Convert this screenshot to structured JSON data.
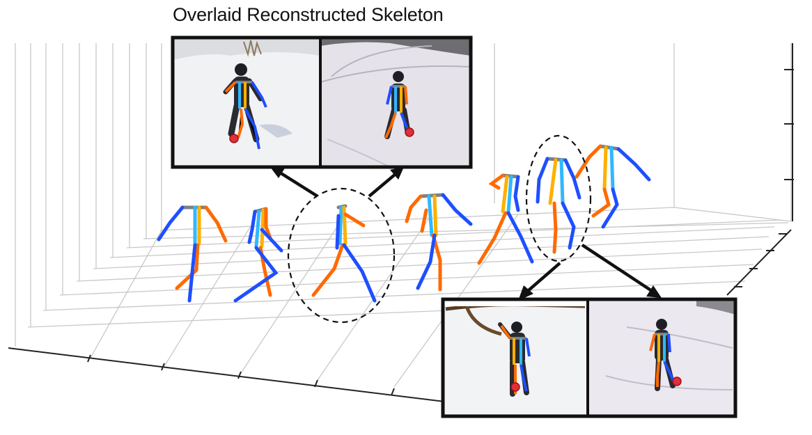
{
  "caption": "Overlaid Reconstructed Skeleton",
  "colors": {
    "background": "#ffffff",
    "grid": "#c8c8c8",
    "axis": "#222222",
    "frame": "#111111",
    "snow": "#eef0f4",
    "left_limb_warm": "#ff6a00",
    "left_limb_light": "#ffb000",
    "right_limb_cool": "#1e4fff",
    "right_limb_light": "#30b8ff",
    "torso": "#808080",
    "contact_marker": "#e0303a",
    "person": "#1e1e24"
  },
  "icons": {
    "arrow": "arrow-icon",
    "highlight": "dashed-ellipse-icon",
    "contact": "foot-contact-marker-icon"
  },
  "skeleton_sequence_count": 7,
  "highlighted_poses": [
    3,
    6
  ],
  "photo_panels_top_count": 2,
  "photo_panels_bottom_count": 2
}
